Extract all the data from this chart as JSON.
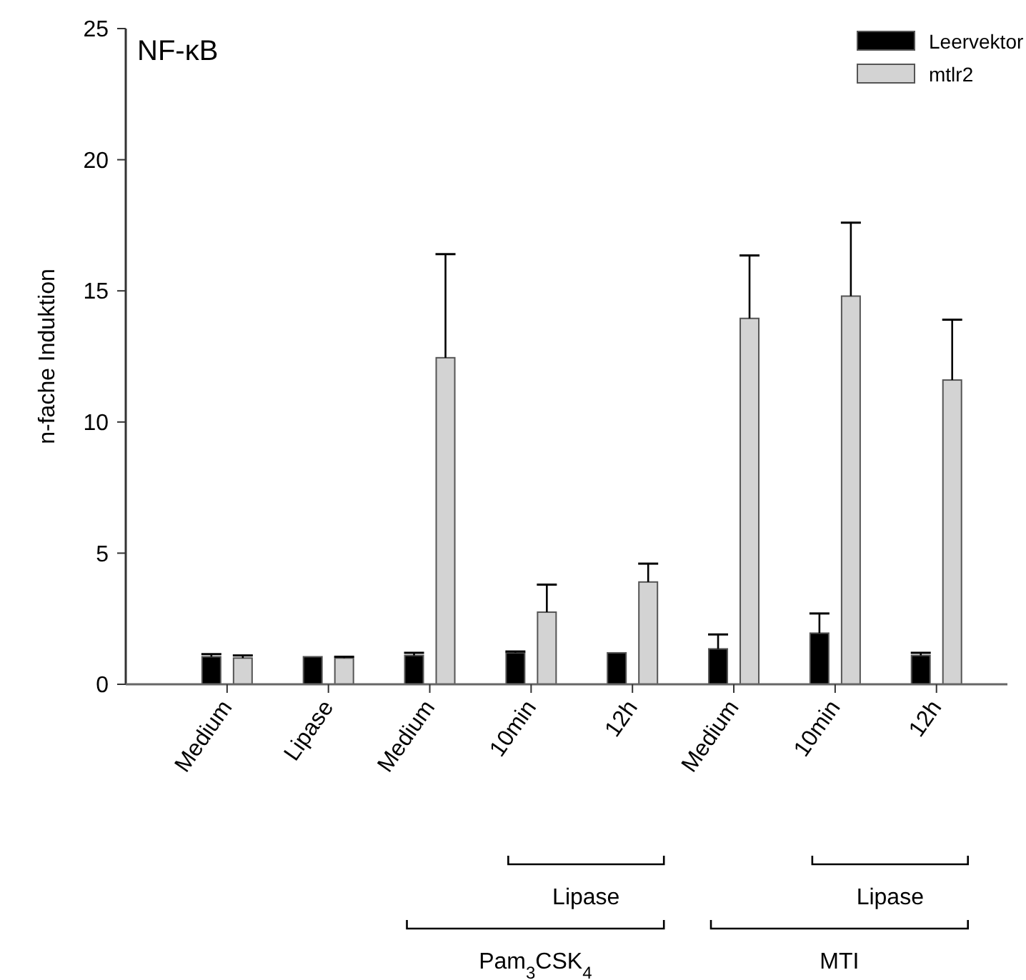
{
  "chart_data": {
    "type": "bar",
    "title": "NF-κB",
    "ylabel": "n-fache Induktion",
    "categories": [
      "Medium",
      "Lipase",
      "Medium",
      "10min",
      "12h",
      "Medium",
      "10min",
      "12h"
    ],
    "series": [
      {
        "name": "Leervektor",
        "color": "#000000",
        "values": [
          1.05,
          1.05,
          1.1,
          1.2,
          1.2,
          1.35,
          1.95,
          1.1
        ],
        "errors": [
          0.1,
          null,
          0.1,
          0.05,
          null,
          0.55,
          0.75,
          0.1
        ]
      },
      {
        "name": "mtlr2",
        "color": "#d3d3d3",
        "values": [
          1.0,
          1.0,
          12.45,
          2.75,
          3.9,
          13.95,
          14.8,
          11.6
        ],
        "errors": [
          0.1,
          0.05,
          3.95,
          1.05,
          0.7,
          2.4,
          2.8,
          2.3
        ]
      }
    ],
    "ylim": [
      0,
      25
    ],
    "yticks": [
      0,
      5,
      10,
      15,
      20,
      25
    ],
    "legend": "top right",
    "annotations": [
      "Lipase",
      "Pam$_{3}$CSK$_{4}$",
      "Lipase",
      "MTI"
    ]
  }
}
